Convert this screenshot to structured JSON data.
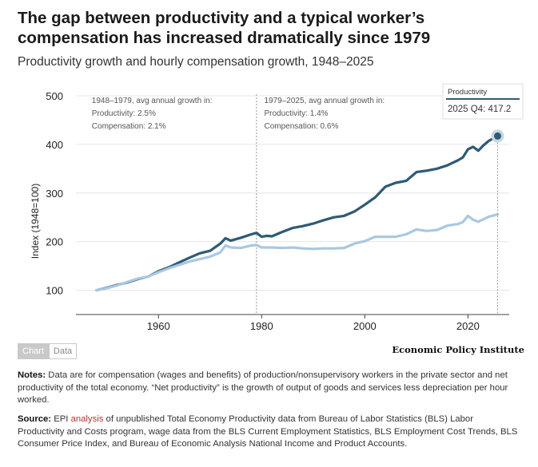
{
  "header": {
    "title": "The gap between productivity and a typical worker’s compensation has increased dramatically since 1979",
    "subtitle": "Productivity growth and hourly compensation growth, 1948–2025"
  },
  "tabs": {
    "chart_label": "Chart",
    "data_label": "Data"
  },
  "brand": "Economic Policy Institute",
  "notes": {
    "label": "Notes:",
    "text": "Data are for compensation (wages and benefits) of production/nonsupervisory workers in the private sector and net productivity of the total economy. “Net productivity” is the growth of output of goods and services less depreciation per hour worked."
  },
  "source": {
    "label": "Source:",
    "pre": "EPI",
    "link": "analysis",
    "text": "of unpublished Total Economy Productivity data from Bureau of Labor Statistics (BLS) Labor Productivity and Costs program, wage data from the BLS Current Employment Statistics, BLS Employment Cost Trends, BLS Consumer Price Index, and Bureau of Economic Analysis National Income and Product Accounts."
  },
  "colors": {
    "productivity": "#2e5a75",
    "compensation": "#a9c8e2"
  },
  "chart_data": {
    "type": "line",
    "ylabel": "Index (1948=100)",
    "ylim": [
      50,
      500
    ],
    "xlim": [
      1944,
      2028
    ],
    "yticks": [
      100,
      200,
      300,
      400,
      500
    ],
    "xticks": [
      1960,
      1980,
      2000,
      2020
    ],
    "annotations": [
      {
        "lines": [
          "1948–1979, avg annual growth in:",
          "Productivity: 2.5%",
          "Compensation: 2.1%"
        ],
        "x": 1948
      },
      {
        "lines": [
          "1979–2025, avg annual growth in:",
          "Productivity: 1.4%",
          "Compensation: 0.6%"
        ],
        "x": 1980.5
      }
    ],
    "reference_line_x": 1979,
    "tooltip": {
      "series": "Productivity",
      "label": "2025 Q4: 417.2",
      "x": 2025.75,
      "y": 417.2
    },
    "series": [
      {
        "name": "Productivity",
        "points": [
          [
            1948,
            100
          ],
          [
            1950,
            105
          ],
          [
            1952,
            111
          ],
          [
            1954,
            116
          ],
          [
            1956,
            123
          ],
          [
            1958,
            128
          ],
          [
            1960,
            139
          ],
          [
            1962,
            147
          ],
          [
            1964,
            157
          ],
          [
            1966,
            167
          ],
          [
            1968,
            176
          ],
          [
            1970,
            181
          ],
          [
            1972,
            196
          ],
          [
            1973,
            207
          ],
          [
            1974,
            202
          ],
          [
            1976,
            208
          ],
          [
            1978,
            215
          ],
          [
            1979,
            218
          ],
          [
            1980,
            210
          ],
          [
            1981,
            212
          ],
          [
            1982,
            211
          ],
          [
            1984,
            220
          ],
          [
            1986,
            228
          ],
          [
            1988,
            232
          ],
          [
            1990,
            237
          ],
          [
            1992,
            244
          ],
          [
            1994,
            250
          ],
          [
            1996,
            253
          ],
          [
            1998,
            262
          ],
          [
            2000,
            276
          ],
          [
            2002,
            291
          ],
          [
            2004,
            313
          ],
          [
            2006,
            321
          ],
          [
            2008,
            325
          ],
          [
            2010,
            343
          ],
          [
            2012,
            346
          ],
          [
            2014,
            350
          ],
          [
            2016,
            357
          ],
          [
            2018,
            367
          ],
          [
            2019,
            373
          ],
          [
            2020,
            390
          ],
          [
            2021,
            395
          ],
          [
            2022,
            387
          ],
          [
            2023,
            398
          ],
          [
            2024,
            407
          ],
          [
            2025,
            413
          ],
          [
            2025.75,
            417.2
          ]
        ]
      },
      {
        "name": "Compensation",
        "points": [
          [
            1948,
            100
          ],
          [
            1950,
            104
          ],
          [
            1952,
            110
          ],
          [
            1954,
            117
          ],
          [
            1956,
            124
          ],
          [
            1958,
            128
          ],
          [
            1960,
            137
          ],
          [
            1962,
            145
          ],
          [
            1964,
            152
          ],
          [
            1966,
            159
          ],
          [
            1968,
            164
          ],
          [
            1970,
            169
          ],
          [
            1972,
            178
          ],
          [
            1973,
            192
          ],
          [
            1974,
            188
          ],
          [
            1976,
            187
          ],
          [
            1978,
            192
          ],
          [
            1979,
            193
          ],
          [
            1980,
            188
          ],
          [
            1982,
            188
          ],
          [
            1984,
            187
          ],
          [
            1986,
            188
          ],
          [
            1988,
            186
          ],
          [
            1990,
            185
          ],
          [
            1992,
            186
          ],
          [
            1994,
            186
          ],
          [
            1996,
            187
          ],
          [
            1998,
            196
          ],
          [
            2000,
            201
          ],
          [
            2002,
            210
          ],
          [
            2004,
            210
          ],
          [
            2006,
            210
          ],
          [
            2008,
            215
          ],
          [
            2010,
            225
          ],
          [
            2012,
            222
          ],
          [
            2014,
            224
          ],
          [
            2016,
            233
          ],
          [
            2018,
            236
          ],
          [
            2019,
            240
          ],
          [
            2020,
            253
          ],
          [
            2021,
            245
          ],
          [
            2022,
            241
          ],
          [
            2023,
            246
          ],
          [
            2024,
            251
          ],
          [
            2025.75,
            256
          ]
        ]
      }
    ]
  }
}
